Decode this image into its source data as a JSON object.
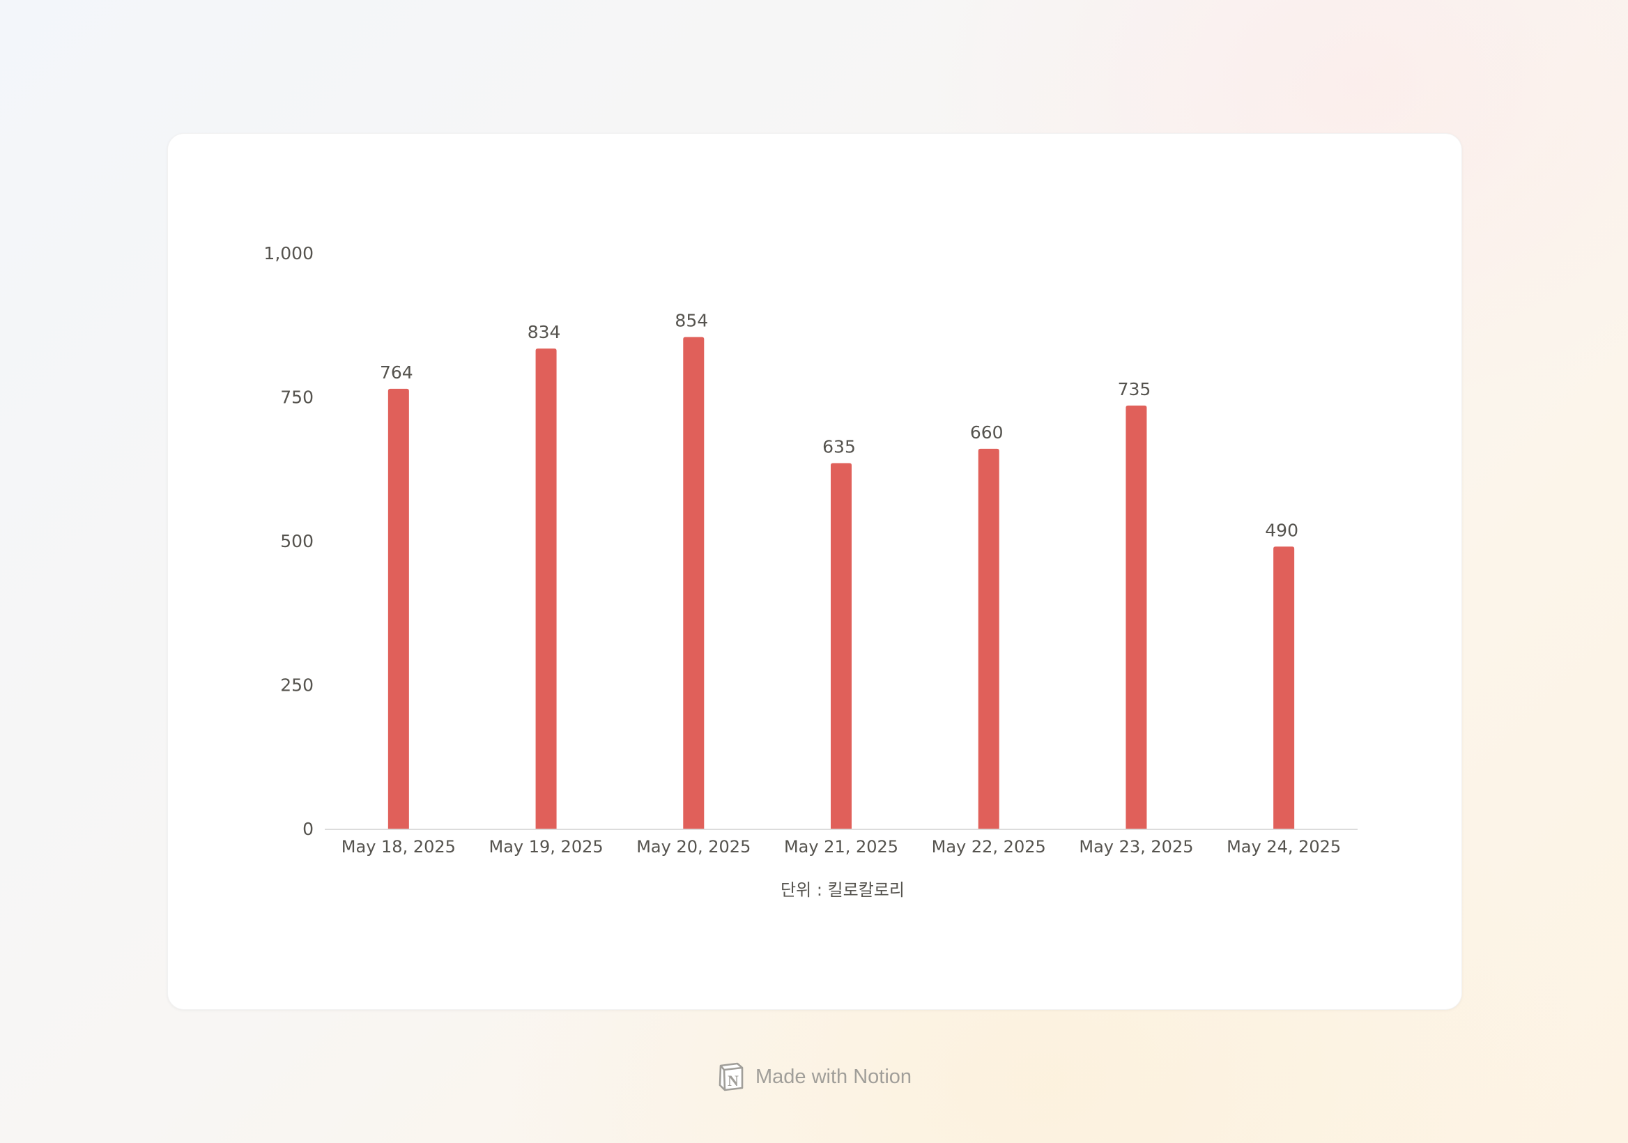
{
  "chart_data": {
    "type": "bar",
    "categories": [
      "May 18, 2025",
      "May 19, 2025",
      "May 20, 2025",
      "May 21, 2025",
      "May 22, 2025",
      "May 23, 2025",
      "May 24, 2025"
    ],
    "values": [
      764,
      834,
      854,
      635,
      660,
      735,
      490
    ],
    "data_labels": [
      "764",
      "834",
      "854",
      "635",
      "660",
      "735",
      "490"
    ],
    "yticks": [
      0,
      250,
      500,
      750,
      1000
    ],
    "ytick_labels": [
      "0",
      "250",
      "500",
      "750",
      "1,000"
    ],
    "ylim": [
      0,
      1000
    ],
    "xlabel": "단위 : 킬로칼로리",
    "grid": false,
    "legend": "none",
    "bar_color": "#e0605a"
  },
  "footer": {
    "text": "Made with Notion",
    "icon": "notion-logo-icon"
  }
}
